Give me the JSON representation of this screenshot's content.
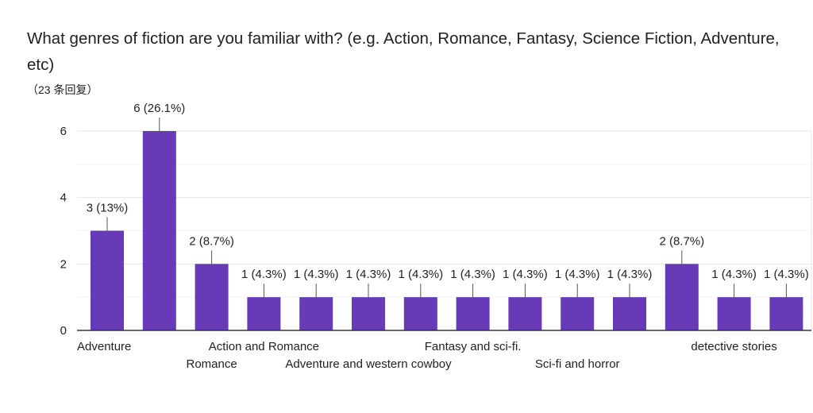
{
  "title": "What genres of fiction are you familiar with? (e.g.  Action, Romance, Fantasy, Science Fiction, Adventure, etc)",
  "subtitle": "（23 条回复）",
  "colors": {
    "bar": "#673ab7",
    "grid": "#e6e6e6",
    "axis": "#333333",
    "leader": "#555555"
  },
  "chart_data": {
    "type": "bar",
    "categories": [
      "Adventure",
      "",
      "Romance",
      "Action and Romance",
      "",
      "Adventure and western cowboy",
      "",
      "Fantasy and sci-fi.",
      "",
      "Sci-fi and horror",
      "",
      "",
      "detective stories",
      ""
    ],
    "values": [
      3,
      6,
      2,
      1,
      1,
      1,
      1,
      1,
      1,
      1,
      1,
      2,
      1,
      1
    ],
    "data_labels": [
      "3 (13%)",
      "6 (26.1%)",
      "2 (8.7%)",
      "1 (4.3%)",
      "1 (4.3%)",
      "1 (4.3%)",
      "1 (4.3%)",
      "1 (4.3%)",
      "1 (4.3%)",
      "1 (4.3%)",
      "1 (4.3%)",
      "2 (8.7%)",
      "1 (4.3%)",
      "1 (4.3%)"
    ],
    "yticks": [
      "0",
      "2",
      "4",
      "6"
    ],
    "ylim": [
      0,
      6
    ],
    "grid": true,
    "legend": "none",
    "xlabel": "",
    "ylabel": ""
  }
}
